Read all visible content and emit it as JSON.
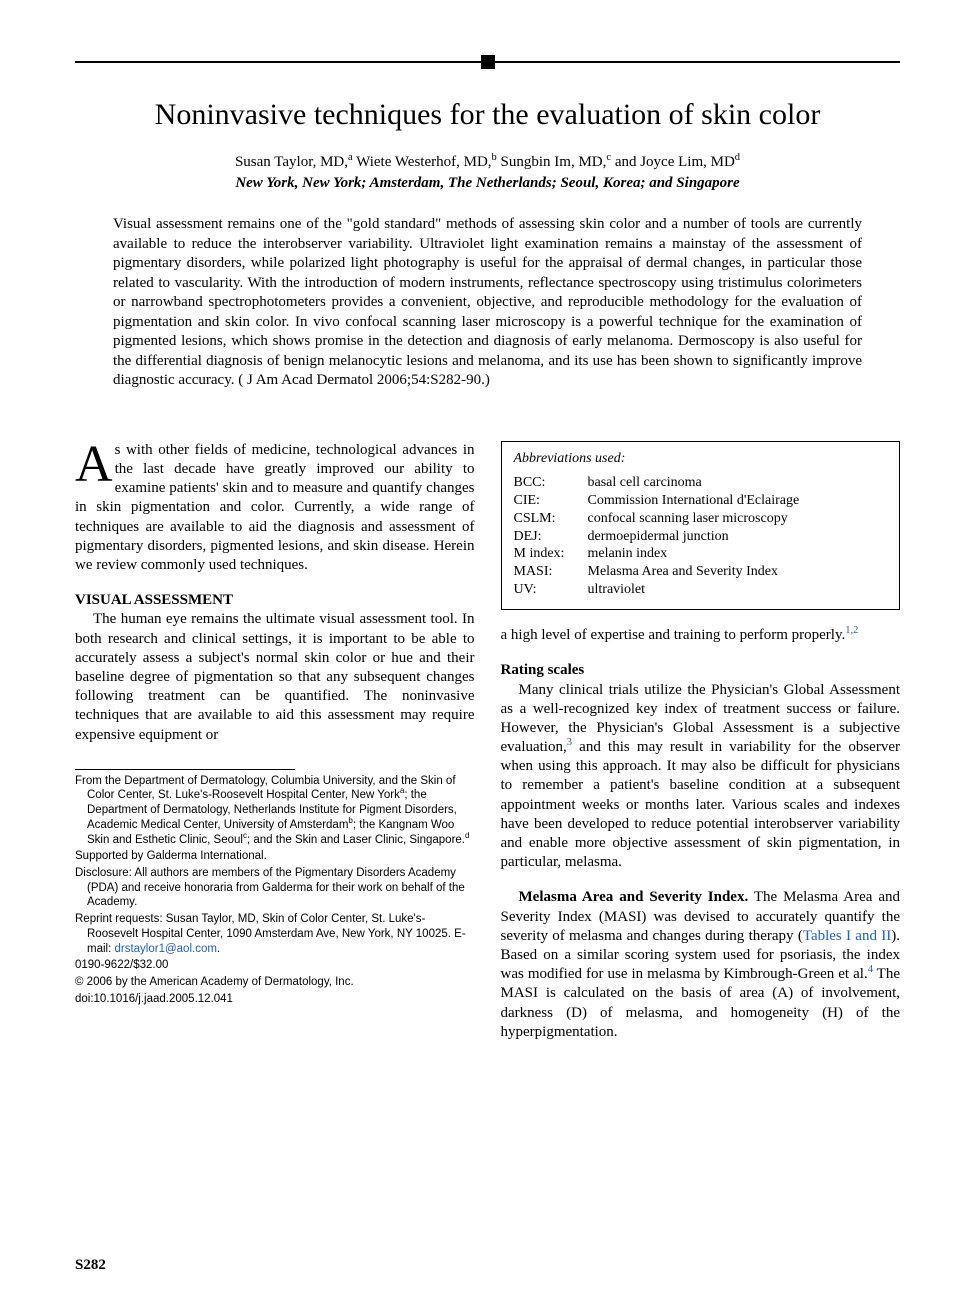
{
  "title": "Noninvasive techniques for the evaluation of skin color",
  "authors_html": "Susan Taylor, MD,<sup>a</sup> Wiete Westerhof, MD,<sup>b</sup> Sungbin Im, MD,<sup>c</sup> and Joyce Lim, MD<sup>d</sup>",
  "affil": "New York, New York; Amsterdam, The Netherlands; Seoul, Korea; and Singapore",
  "abstract": "Visual assessment remains one of the \"gold standard\" methods of assessing skin color and a number of tools are currently available to reduce the interobserver variability. Ultraviolet light examination remains a mainstay of the assessment of pigmentary disorders, while polarized light photography is useful for the appraisal of dermal changes, in particular those related to vascularity. With the introduction of modern instruments, reflectance spectroscopy using tristimulus colorimeters or narrowband spectrophotometers provides a convenient, objective, and reproducible methodology for the evaluation of pigmentation and skin color. In vivo confocal scanning laser microscopy is a powerful technique for the examination of pigmented lesions, which shows promise in the detection and diagnosis of early melanoma. Dermoscopy is also useful for the differential diagnosis of benign melanocytic lesions and melanoma, and its use has been shown to significantly improve diagnostic accuracy. ( J Am Acad Dermatol 2006;54:S282-90.)",
  "intro_dropcap": "A",
  "intro_rest": "s with other fields of medicine, technological advances in the last decade have greatly improved our ability to examine patients' skin and to measure and quantify changes in skin pigmentation and color. Currently, a wide range of techniques are available to aid the diagnosis and assessment of pigmentary disorders, pigmented lesions, and skin disease. Herein we review commonly used techniques.",
  "h_visual": "VISUAL ASSESSMENT",
  "p_visual": "The human eye remains the ultimate visual assessment tool. In both research and clinical settings, it is important to be able to accurately assess a subject's normal skin color or hue and their baseline degree of pigmentation so that any subsequent changes following treatment can be quantified. The noninvasive techniques that are available to aid this assessment may require expensive equipment or",
  "footnotes": {
    "from": "From the Department of Dermatology, Columbia University, and the Skin of Color Center, St. Luke's-Roosevelt Hospital Center, New York<sup>a</sup>; the Department of Dermatology, Netherlands Institute for Pigment Disorders, Academic Medical Center, University of Amsterdam<sup>b</sup>; the Kangnam Woo Skin and Esthetic Clinic, Seoul<sup>c</sup>; and the Skin and Laser Clinic, Singapore.<sup>d</sup>",
    "supported": "Supported by Galderma International.",
    "disclosure": "Disclosure: All authors are members of the Pigmentary Disorders Academy (PDA) and receive honoraria from Galderma for their work on behalf of the Academy.",
    "reprint": "Reprint requests: Susan Taylor, MD, Skin of Color Center, St. Luke's-Roosevelt Hospital Center, 1090 Amsterdam Ave, New York, NY 10025. E-mail: <span class=\"link\">drstaylor1@aol.com</span>.",
    "issn": "0190-9622/$32.00",
    "copyright": "© 2006 by the American Academy of Dermatology, Inc.",
    "doi": "doi:10.1016/j.jaad.2005.12.041"
  },
  "abbr_title": "Abbreviations used:",
  "abbr": [
    {
      "k": "BCC:",
      "v": "basal cell carcinoma"
    },
    {
      "k": "CIE:",
      "v": "Commission International d'Eclairage"
    },
    {
      "k": "CSLM:",
      "v": "confocal scanning laser microscopy"
    },
    {
      "k": "DEJ:",
      "v": "dermoepidermal junction"
    },
    {
      "k": "M index:",
      "v": "melanin index"
    },
    {
      "k": "MASI:",
      "v": "Melasma Area and Severity Index"
    },
    {
      "k": "UV:",
      "v": "ultraviolet"
    }
  ],
  "p_cont_right": "a high level of expertise and training to perform properly.",
  "ref12": "1,2",
  "h_rating": "Rating scales",
  "p_rating": "Many clinical trials utilize the Physician's Global Assessment as a well-recognized key index of treatment success or failure. However, the Physician's Global Assessment is a subjective evaluation,",
  "ref3": "3",
  "p_rating2": " and this may result in variability for the observer when using this approach. It may also be difficult for physicians to remember a patient's baseline condition at a subsequent appointment weeks or months later. Various scales and indexes have been developed to reduce potential interobserver variability and enable more objective assessment of skin pigmentation, in particular, melasma.",
  "runin_masi": "Melasma Area and Severity Index.",
  "p_masi1": " The Melasma Area and Severity Index (MASI) was devised to accurately quantify the severity of melasma and changes during therapy (",
  "tables_link": "Tables I and II",
  "p_masi2": "). Based on a similar scoring system used for psoriasis, the index was modified for use in melasma by Kimbrough-Green et al.",
  "ref4": "4",
  "p_masi3": " The MASI is calculated on the basis of area (A) of involvement, darkness (D) of melasma, and homogeneity (H) of the hyperpigmentation.",
  "page_label": "S282",
  "colors": {
    "text": "#000000",
    "bg": "#ffffff",
    "link": "#2060c0"
  }
}
